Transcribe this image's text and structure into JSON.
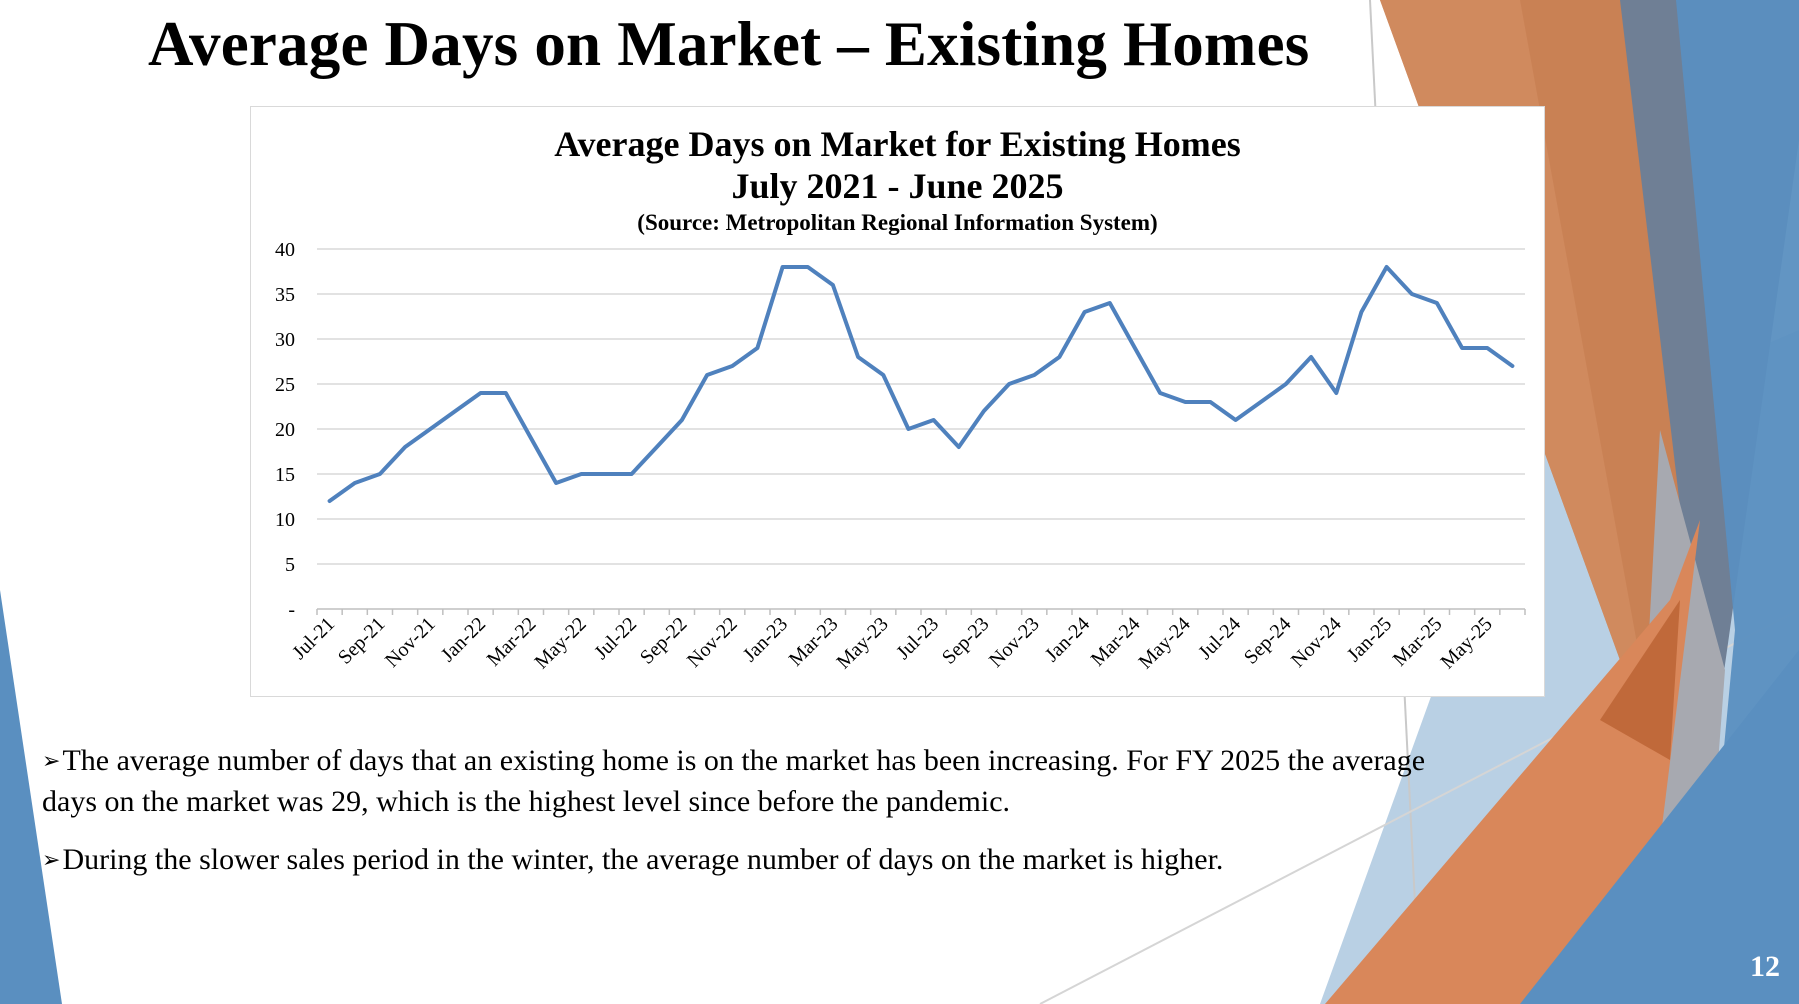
{
  "slide": {
    "title": "Average Days on Market – Existing Homes",
    "page_number": "12",
    "bullet_symbol": "➢",
    "bullets": [
      "The average number of days that an existing home is on the market has been increasing. For FY 2025 the average days on the market was 29, which is the highest level since before the pandemic.",
      "During the slower sales period in the winter, the average number of days on the market is higher."
    ]
  },
  "colors": {
    "line": "#4f81bd",
    "grid": "#d9d9d9",
    "orange": "#d9875a",
    "dark_orange": "#c0693a",
    "blue": "#5a8fc0",
    "steel": "#6f7f95",
    "light_blue": "#b9d0e4"
  },
  "chart_data": {
    "type": "line",
    "title": "Average Days on Market for Existing Homes",
    "subtitle": "July 2021 - June 2025",
    "source": "(Source: Metropolitan Regional Information System)",
    "ylim": [
      0,
      40
    ],
    "yticks": [
      0,
      5,
      10,
      15,
      20,
      25,
      30,
      35,
      40
    ],
    "ytick_labels": [
      "-",
      "5",
      "10",
      "15",
      "20",
      "25",
      "30",
      "35",
      "40"
    ],
    "grid": true,
    "x": [
      "Jul-21",
      "Aug-21",
      "Sep-21",
      "Oct-21",
      "Nov-21",
      "Dec-21",
      "Jan-22",
      "Feb-22",
      "Mar-22",
      "Apr-22",
      "May-22",
      "Jun-22",
      "Jul-22",
      "Aug-22",
      "Sep-22",
      "Oct-22",
      "Nov-22",
      "Dec-22",
      "Jan-23",
      "Feb-23",
      "Mar-23",
      "Apr-23",
      "May-23",
      "Jun-23",
      "Jul-23",
      "Aug-23",
      "Sep-23",
      "Oct-23",
      "Nov-23",
      "Dec-23",
      "Jan-24",
      "Feb-24",
      "Mar-24",
      "Apr-24",
      "May-24",
      "Jun-24",
      "Jul-24",
      "Aug-24",
      "Sep-24",
      "Oct-24",
      "Nov-24",
      "Dec-24",
      "Jan-25",
      "Feb-25",
      "Mar-25",
      "Apr-25",
      "May-25",
      "Jun-25"
    ],
    "x_tick_labels": [
      "Jul-21",
      "Sep-21",
      "Nov-21",
      "Jan-22",
      "Mar-22",
      "May-22",
      "Jul-22",
      "Sep-22",
      "Nov-22",
      "Jan-23",
      "Mar-23",
      "May-23",
      "Jul-23",
      "Sep-23",
      "Nov-23",
      "Jan-24",
      "Mar-24",
      "May-24",
      "Jul-24",
      "Sep-24",
      "Nov-24",
      "Jan-25",
      "Mar-25",
      "May-25"
    ],
    "series": [
      {
        "values": [
          12,
          14,
          15,
          18,
          20,
          22,
          24,
          24,
          19,
          14,
          15,
          15,
          15,
          18,
          21,
          26,
          27,
          29,
          38,
          38,
          36,
          28,
          26,
          20,
          21,
          18,
          22,
          25,
          26,
          28,
          33,
          34,
          29,
          24,
          23,
          23,
          21,
          23,
          25,
          28,
          24,
          33,
          38,
          35,
          34,
          29,
          29,
          27
        ]
      }
    ]
  }
}
